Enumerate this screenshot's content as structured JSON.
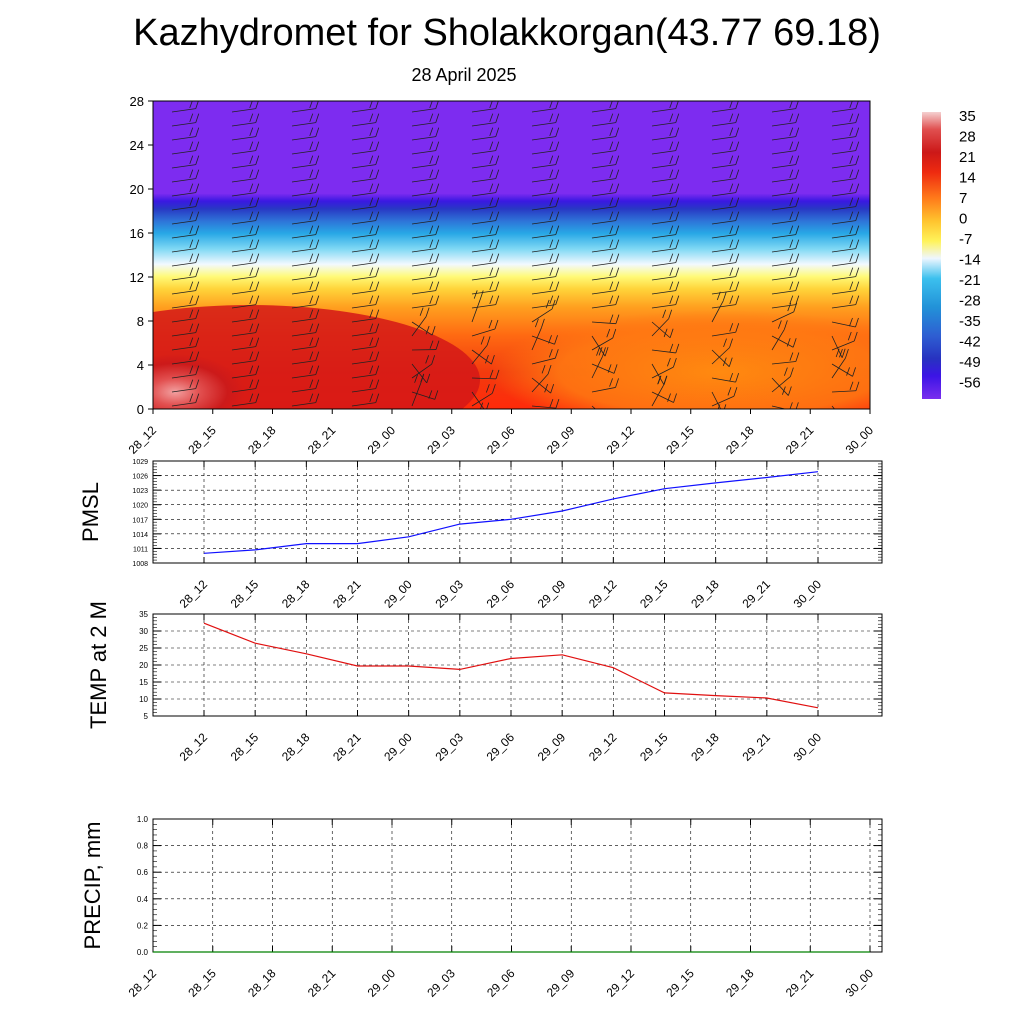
{
  "title": "Kazhydromet for Sholakkorgan(43.77 69.18)",
  "subtitle": "28 April 2025",
  "time_labels": [
    "28_12",
    "28_15",
    "28_18",
    "28_21",
    "29_00",
    "29_03",
    "29_06",
    "29_09",
    "29_12",
    "29_15",
    "29_18",
    "29_21",
    "30_00"
  ],
  "chart_data": [
    {
      "type": "heatmap",
      "name": "temperature-wind cross-section",
      "x": [
        "28_12",
        "28_15",
        "28_18",
        "28_21",
        "29_00",
        "29_03",
        "29_06",
        "29_09",
        "29_12",
        "29_15",
        "29_18",
        "29_21",
        "30_00"
      ],
      "ylim": [
        0,
        28
      ],
      "yticks": [
        0,
        4,
        8,
        12,
        16,
        20,
        24,
        28
      ],
      "colorbar": {
        "ticks": [
          35,
          28,
          21,
          14,
          7,
          0,
          -7,
          -14,
          -21,
          -28,
          -35,
          -42,
          -49,
          -56
        ],
        "colors": [
          "#f4c6c8",
          "#e23a3a",
          "#cc1818",
          "#ee2a10",
          "#ff7a1a",
          "#ffc42e",
          "#fff35a",
          "#d8ecff",
          "#3cc0ee",
          "#2292d8",
          "#2e5ed2",
          "#2732c0",
          "#3c14e6",
          "#7a2eee"
        ]
      },
      "wind_barbs": true
    },
    {
      "type": "line",
      "ylabel": "PMSL",
      "x": [
        "28_12",
        "28_15",
        "28_18",
        "28_21",
        "29_00",
        "29_03",
        "29_06",
        "29_09",
        "29_12",
        "29_15",
        "29_18",
        "29_21",
        "30_00"
      ],
      "ylim": [
        1008,
        1029
      ],
      "yticks": [
        1008,
        1011,
        1014,
        1017,
        1020,
        1023,
        1026,
        1029
      ],
      "grid": true,
      "color": "#1010ff",
      "values": [
        1010.0,
        1010.7,
        1012.0,
        1012.0,
        1013.4,
        1016.0,
        1017.0,
        1018.7,
        1021.2,
        1023.3,
        1024.5,
        1025.6,
        1026.8
      ]
    },
    {
      "type": "line",
      "ylabel": "TEMP at 2 M",
      "x": [
        "28_12",
        "28_15",
        "28_18",
        "28_21",
        "29_00",
        "29_03",
        "29_06",
        "29_09",
        "29_12",
        "29_15",
        "29_18",
        "29_21",
        "30_00"
      ],
      "ylim": [
        5,
        35
      ],
      "yticks": [
        5,
        10,
        15,
        20,
        25,
        30,
        35
      ],
      "grid": true,
      "color": "#e01010",
      "values": [
        32.3,
        26.4,
        23.3,
        19.7,
        19.7,
        18.7,
        21.9,
        23.0,
        19.2,
        11.8,
        11.0,
        10.3,
        7.4
      ]
    },
    {
      "type": "line",
      "ylabel": "PRECIP, mm",
      "x": [
        "28_12",
        "28_15",
        "28_18",
        "28_21",
        "29_00",
        "29_03",
        "29_06",
        "29_09",
        "29_12",
        "29_15",
        "29_18",
        "29_21",
        "30_00"
      ],
      "ylim": [
        0.0,
        1.0
      ],
      "yticks": [
        "0.0",
        "0.2",
        "0.4",
        "0.6",
        "0.8",
        "1.0"
      ],
      "grid": true,
      "color": "#008000",
      "values": [
        0,
        0,
        0,
        0,
        0,
        0,
        0,
        0,
        0,
        0,
        0,
        0,
        0
      ]
    }
  ]
}
